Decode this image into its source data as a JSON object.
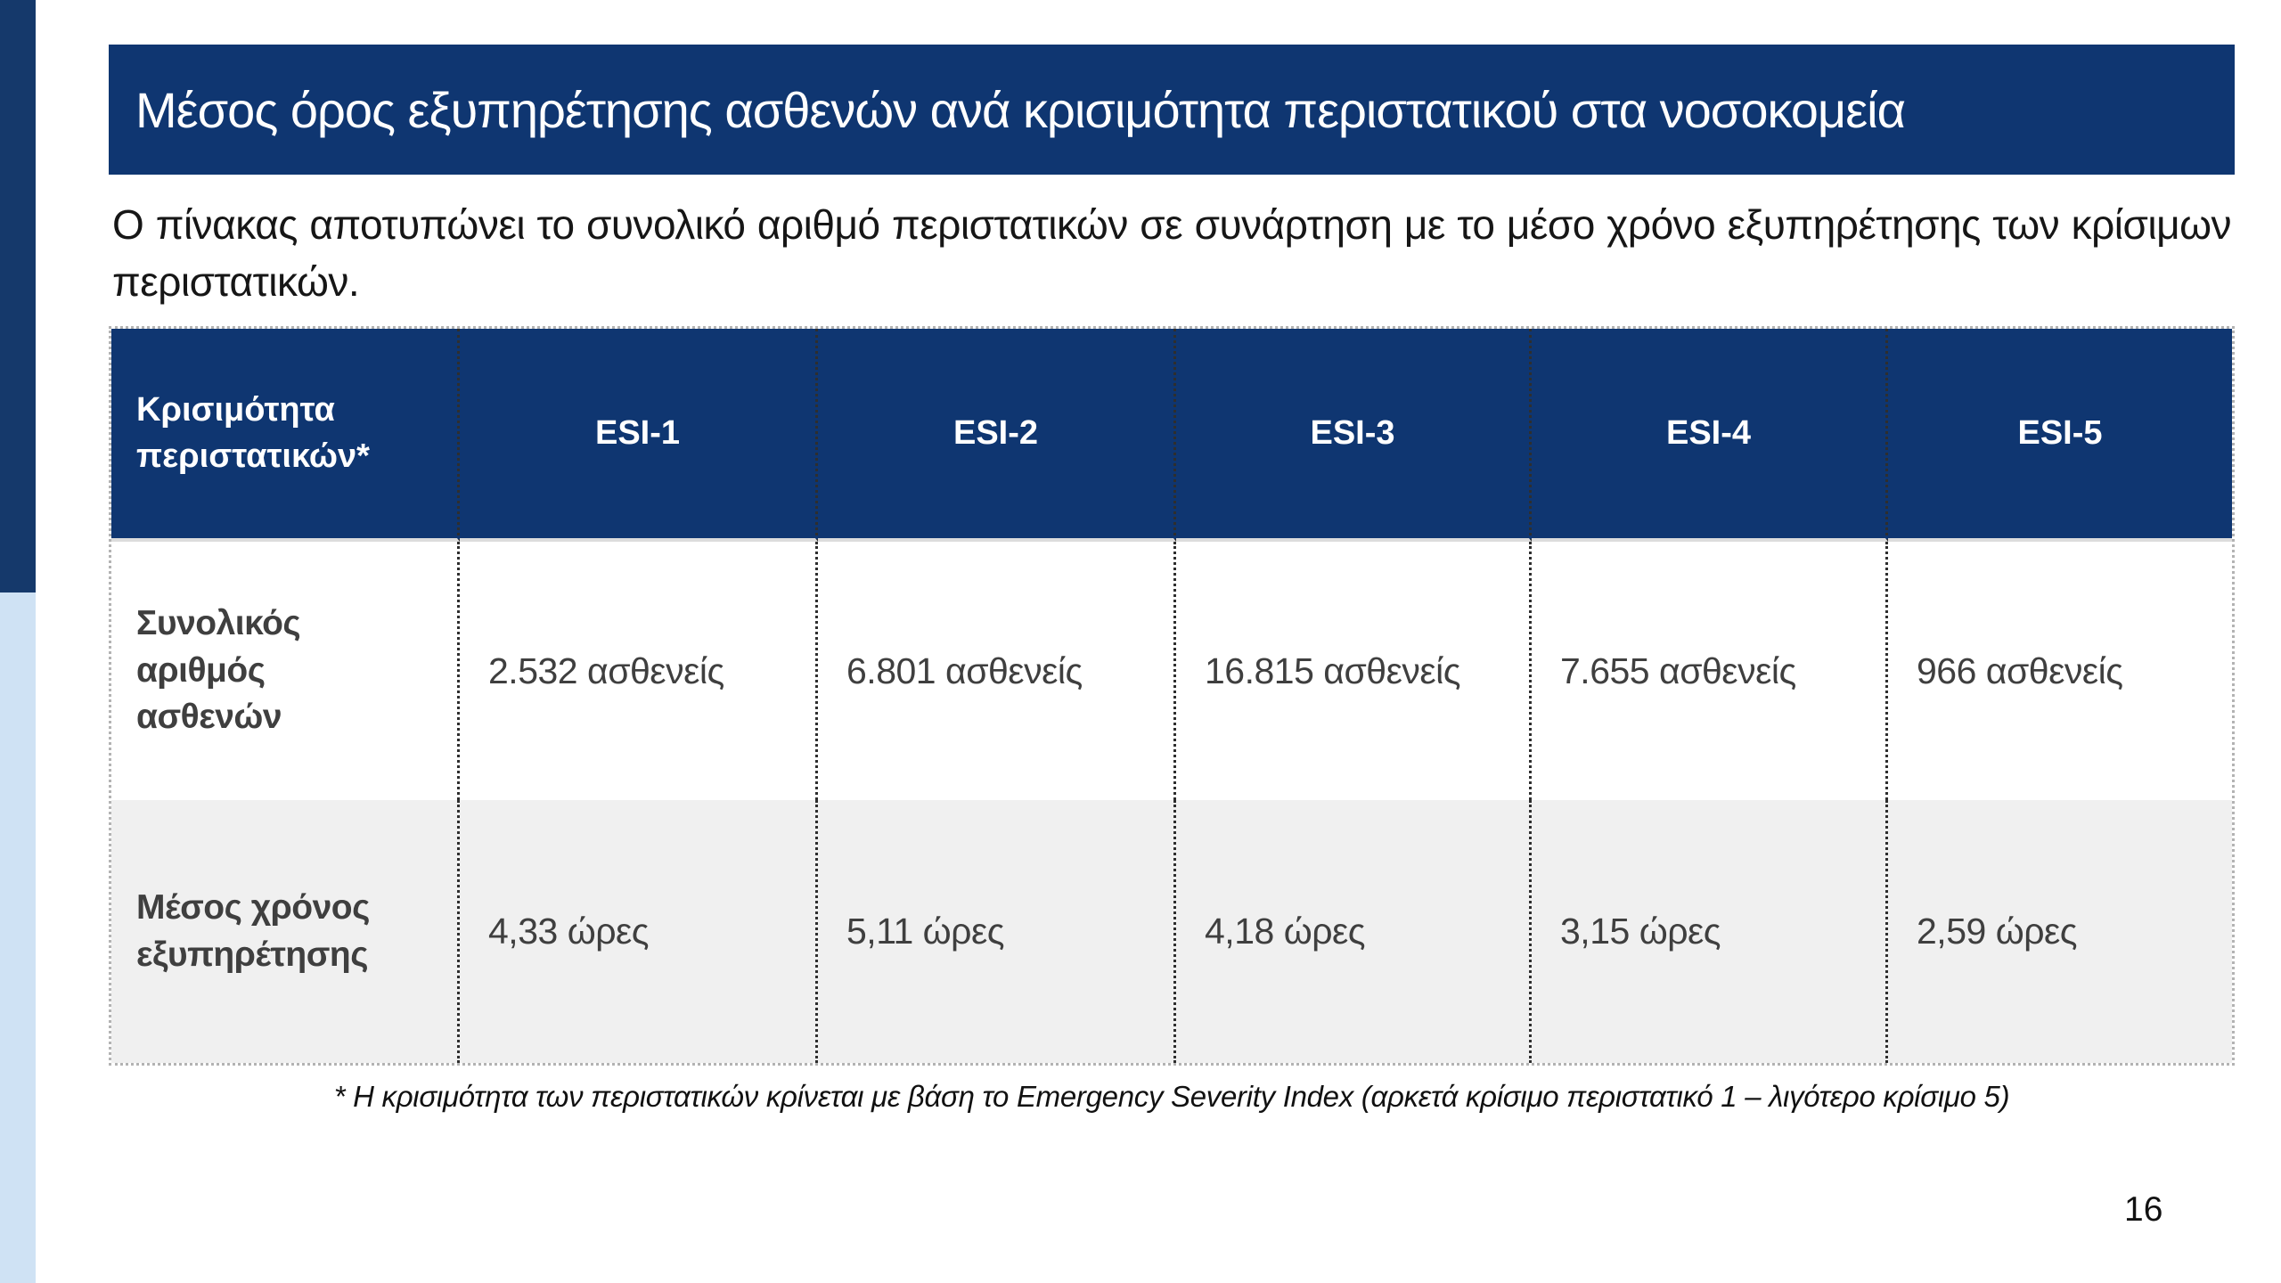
{
  "colors": {
    "navy": "#0F3671",
    "sidebar_navy": "#15396B",
    "sidebar_light": "#CFE2F4",
    "row_alt": "#F0F0F0",
    "cell_text": "#3F3F3F"
  },
  "title_bar": {
    "title": "Μέσος όρος εξυπηρέτησης ασθενών ανά κρισιμότητα περιστατικού στα νοσοκομεία"
  },
  "intro": {
    "text": "Ο πίνακας αποτυπώνει το συνολικό αριθμό περιστατικών σε συνάρτηση με το μέσο χρόνο εξυπηρέτησης των κρίσιμων περιστατικών."
  },
  "table": {
    "columns": [
      "Κρισιμότητα\nπεριστατικών*",
      "ESI-1",
      "ESI-2",
      "ESI-3",
      "ESI-4",
      "ESI-5"
    ],
    "rows": [
      {
        "label": "Συνολικός\nαριθμός\nασθενών",
        "values": [
          "2.532 ασθενείς",
          "6.801 ασθενείς",
          "16.815 ασθενείς",
          "7.655 ασθενείς",
          "966 ασθενείς"
        ]
      },
      {
        "label": "Μέσος χρόνος\nεξυπηρέτησης",
        "values": [
          "4,33 ώρες",
          "5,11 ώρες",
          "4,18 ώρες",
          "3,15 ώρες",
          "2,59 ώρες"
        ]
      }
    ]
  },
  "footnote": {
    "text": "* Η κρισιμότητα των περιστατικών κρίνεται με βάση το Emergency Severity Index (αρκετά κρίσιμο περιστατικό 1 – λιγότερο κρίσιμο 5)"
  },
  "meta": {
    "page_number": "16"
  }
}
